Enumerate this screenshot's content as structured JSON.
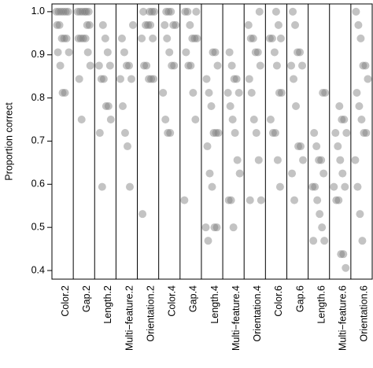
{
  "chart_data": {
    "type": "strip",
    "ylabel": "Proportion correct",
    "categories": [
      "Color.2",
      "Gap.2",
      "Length.2",
      "Multi−feature.2",
      "Orientation.2",
      "Color.4",
      "Gap.4",
      "Length.4",
      "Multi−feature.4",
      "Orientation.4",
      "Color.6",
      "Gap.6",
      "Length.6",
      "Multi−feature.6",
      "Orientation.6"
    ],
    "values": [
      [
        1.0,
        1.0,
        1.0,
        1.0,
        1.0,
        1.0,
        0.969,
        0.969,
        0.938,
        0.938,
        0.938,
        0.906,
        0.906,
        0.875,
        0.812,
        0.812
      ],
      [
        1.0,
        1.0,
        1.0,
        1.0,
        1.0,
        1.0,
        0.969,
        0.969,
        0.938,
        0.938,
        0.938,
        0.938,
        0.906,
        0.875,
        0.844,
        0.75
      ],
      [
        0.969,
        0.938,
        0.906,
        0.875,
        0.875,
        0.844,
        0.844,
        0.781,
        0.781,
        0.75,
        0.719,
        0.594
      ],
      [
        0.969,
        0.938,
        0.906,
        0.875,
        0.875,
        0.844,
        0.844,
        0.781,
        0.719,
        0.688,
        0.594
      ],
      [
        1.0,
        1.0,
        1.0,
        1.0,
        0.969,
        0.969,
        0.969,
        0.938,
        0.938,
        0.875,
        0.875,
        0.844,
        0.844,
        0.844,
        0.531
      ],
      [
        1.0,
        1.0,
        1.0,
        0.969,
        0.969,
        0.969,
        0.938,
        0.906,
        0.875,
        0.875,
        0.812,
        0.75,
        0.719,
        0.719
      ],
      [
        1.0,
        1.0,
        1.0,
        0.969,
        0.938,
        0.938,
        0.938,
        0.906,
        0.875,
        0.875,
        0.812,
        0.75,
        0.563
      ],
      [
        0.906,
        0.906,
        0.875,
        0.844,
        0.812,
        0.781,
        0.719,
        0.719,
        0.719,
        0.688,
        0.625,
        0.594,
        0.5,
        0.5,
        0.5,
        0.469
      ],
      [
        0.906,
        0.875,
        0.844,
        0.844,
        0.812,
        0.812,
        0.781,
        0.75,
        0.719,
        0.656,
        0.625,
        0.563,
        0.563,
        0.5
      ],
      [
        1.0,
        0.969,
        0.938,
        0.938,
        0.906,
        0.906,
        0.875,
        0.844,
        0.812,
        0.75,
        0.719,
        0.656,
        0.563,
        0.563
      ],
      [
        1.0,
        0.969,
        0.938,
        0.938,
        0.938,
        0.906,
        0.875,
        0.812,
        0.812,
        0.75,
        0.719,
        0.719,
        0.656,
        0.594
      ],
      [
        1.0,
        0.969,
        0.906,
        0.906,
        0.875,
        0.875,
        0.844,
        0.781,
        0.688,
        0.688,
        0.656,
        0.625,
        0.563
      ],
      [
        0.812,
        0.812,
        0.719,
        0.688,
        0.656,
        0.656,
        0.625,
        0.594,
        0.594,
        0.563,
        0.531,
        0.5,
        0.469,
        0.469
      ],
      [
        0.781,
        0.75,
        0.75,
        0.719,
        0.719,
        0.688,
        0.656,
        0.625,
        0.594,
        0.594,
        0.563,
        0.563,
        0.438,
        0.438,
        0.406
      ],
      [
        1.0,
        0.969,
        0.938,
        0.875,
        0.875,
        0.844,
        0.812,
        0.781,
        0.75,
        0.719,
        0.719,
        0.656,
        0.594,
        0.531,
        0.469
      ]
    ],
    "color": "#7a7a7a",
    "ylim": [
      0.38,
      1.018
    ],
    "yticks": [
      0.4,
      0.5,
      0.6,
      0.7,
      0.8,
      0.9,
      {
        "value": 1,
        "label": "1.0"
      }
    ]
  }
}
